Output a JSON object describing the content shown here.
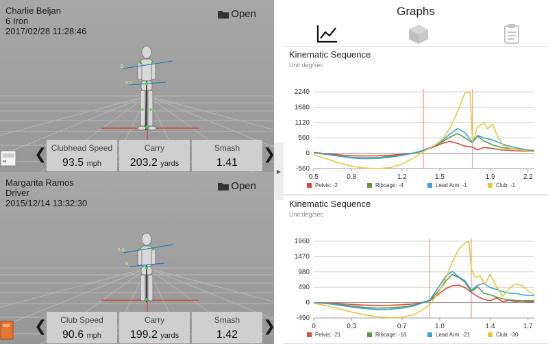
{
  "viewers": [
    {
      "player": "Charlie Beljan",
      "club": "6 Iron",
      "datetime": "2017/02/28 11:28:46",
      "open_label": "Open",
      "annot_top": "0",
      "annot_mid": "5 0",
      "stats": [
        {
          "label": "Clubhead Speed",
          "value": "93.5",
          "unit": "mph"
        },
        {
          "label": "Carry",
          "value": "203.2",
          "unit": "yards"
        },
        {
          "label": "Smash",
          "value": "1.41",
          "unit": ""
        }
      ]
    },
    {
      "player": "Margarita Ramos",
      "club": "Driver",
      "datetime": "2015/12/14 13:32:30",
      "open_label": "Open",
      "annot_top": "5 0",
      "annot_mid": "9",
      "stats": [
        {
          "label": "Club Speed",
          "value": "90.6",
          "unit": "mph"
        },
        {
          "label": "Carry",
          "value": "199.2",
          "unit": "yards"
        },
        {
          "label": "Smash",
          "value": "1.42",
          "unit": ""
        }
      ]
    }
  ],
  "graphs": {
    "title": "Graphs",
    "tabs": [
      {
        "name": "line-chart-icon",
        "active": true
      },
      {
        "name": "cube-icon",
        "active": false
      },
      {
        "name": "clipboard-icon",
        "active": false
      }
    ]
  },
  "colors": {
    "pelvis": "#d9463a",
    "ribcage": "#5b9a45",
    "lead_arm": "#3aa3d6",
    "club": "#e8c63a",
    "marker": "#e08c7a"
  },
  "chart_data": [
    {
      "type": "line",
      "title": "Kinematic Sequence",
      "subtitle": "Unit:deg/sec",
      "xlim": [
        0.5,
        2.25
      ],
      "ylim": [
        -560,
        2240
      ],
      "x_ticks": [
        "0.5",
        "0.8",
        "1.2",
        "1.5",
        "1.9",
        "2.2"
      ],
      "x_tick_values": [
        0.5,
        0.8,
        1.2,
        1.5,
        1.9,
        2.2
      ],
      "y_ticks": [
        "2240",
        "1680",
        "1120",
        "560",
        "0",
        "-560"
      ],
      "y_tick_values": [
        2240,
        1680,
        1120,
        560,
        0,
        -560
      ],
      "markers": [
        1.37,
        1.76
      ],
      "series": [
        {
          "name": "Pelvis: -2",
          "key": "pelvis",
          "x": [
            0.5,
            0.6,
            0.7,
            0.8,
            0.9,
            1.0,
            1.1,
            1.2,
            1.3,
            1.37,
            1.45,
            1.52,
            1.58,
            1.64,
            1.7,
            1.76,
            1.8,
            1.85,
            1.92,
            2.0,
            2.1,
            2.2,
            2.25
          ],
          "y": [
            30,
            -20,
            -60,
            -90,
            -100,
            -95,
            -75,
            -45,
            10,
            80,
            220,
            360,
            430,
            360,
            260,
            220,
            120,
            210,
            170,
            120,
            90,
            70,
            60
          ]
        },
        {
          "name": "Ribcage: -4",
          "key": "ribcage",
          "x": [
            0.5,
            0.6,
            0.7,
            0.8,
            0.9,
            1.0,
            1.1,
            1.2,
            1.3,
            1.37,
            1.45,
            1.52,
            1.58,
            1.64,
            1.7,
            1.76,
            1.8,
            1.85,
            1.92,
            2.0,
            2.1,
            2.2,
            2.25
          ],
          "y": [
            20,
            -40,
            -100,
            -150,
            -170,
            -160,
            -120,
            -70,
            0,
            90,
            250,
            420,
            580,
            720,
            560,
            380,
            620,
            450,
            300,
            200,
            150,
            100,
            90
          ]
        },
        {
          "name": "Lead Arm: -1",
          "key": "lead_arm",
          "x": [
            0.5,
            0.6,
            0.7,
            0.8,
            0.9,
            1.0,
            1.1,
            1.2,
            1.3,
            1.37,
            1.45,
            1.52,
            1.58,
            1.64,
            1.7,
            1.76,
            1.8,
            1.85,
            1.92,
            2.0,
            2.1,
            2.2,
            2.25
          ],
          "y": [
            10,
            -40,
            -110,
            -170,
            -200,
            -190,
            -150,
            -80,
            20,
            110,
            260,
            460,
            700,
            900,
            750,
            400,
            650,
            560,
            480,
            330,
            200,
            120,
            100
          ]
        },
        {
          "name": "Club: -1",
          "key": "club",
          "x": [
            0.5,
            0.6,
            0.7,
            0.8,
            0.9,
            1.0,
            1.1,
            1.2,
            1.3,
            1.37,
            1.45,
            1.52,
            1.58,
            1.64,
            1.7,
            1.74,
            1.76,
            1.8,
            1.85,
            1.88,
            1.92,
            1.96,
            2.0,
            2.05,
            2.1,
            2.2,
            2.25
          ],
          "y": [
            -50,
            -200,
            -350,
            -470,
            -540,
            -560,
            -530,
            -400,
            -150,
            60,
            250,
            500,
            900,
            1500,
            2200,
            2240,
            400,
            950,
            1100,
            900,
            1050,
            600,
            300,
            200,
            150,
            80,
            60
          ]
        }
      ]
    },
    {
      "type": "line",
      "title": "Kinematic Sequence",
      "subtitle": "Unit:deg/sec",
      "xlim": [
        0,
        1.75
      ],
      "ylim": [
        -490,
        1960
      ],
      "x_ticks": [
        "0",
        "0.3",
        "0.7",
        "1.0",
        "1.4",
        "1.7"
      ],
      "x_tick_values": [
        0,
        0.3,
        0.7,
        1.0,
        1.4,
        1.7
      ],
      "y_ticks": [
        "1960",
        "1470",
        "980",
        "490",
        "0",
        "-490"
      ],
      "y_tick_values": [
        1960,
        1470,
        980,
        490,
        0,
        -490
      ],
      "markers": [
        0.92,
        1.25
      ],
      "series": [
        {
          "name": "Pelvis: -21",
          "key": "pelvis",
          "x": [
            0,
            0.1,
            0.2,
            0.3,
            0.4,
            0.5,
            0.6,
            0.7,
            0.8,
            0.92,
            1.0,
            1.05,
            1.1,
            1.15,
            1.2,
            1.25,
            1.3,
            1.35,
            1.4,
            1.45,
            1.5,
            1.55,
            1.6,
            1.65,
            1.7,
            1.75
          ],
          "y": [
            0,
            -10,
            -30,
            -60,
            -80,
            -90,
            -85,
            -70,
            -40,
            60,
            300,
            450,
            540,
            560,
            480,
            330,
            200,
            100,
            60,
            150,
            30,
            80,
            20,
            50,
            20,
            30
          ]
        },
        {
          "name": "Ribcage: -16",
          "key": "ribcage",
          "x": [
            0,
            0.1,
            0.2,
            0.3,
            0.4,
            0.5,
            0.6,
            0.7,
            0.8,
            0.92,
            1.0,
            1.05,
            1.1,
            1.15,
            1.2,
            1.25,
            1.3,
            1.35,
            1.4,
            1.45,
            1.5,
            1.55,
            1.6,
            1.65,
            1.7,
            1.75
          ],
          "y": [
            0,
            -20,
            -60,
            -110,
            -150,
            -170,
            -165,
            -140,
            -80,
            60,
            420,
            700,
            900,
            800,
            650,
            350,
            500,
            300,
            250,
            180,
            120,
            90,
            70,
            60,
            60,
            60
          ]
        },
        {
          "name": "Lead Arm: -21",
          "key": "lead_arm",
          "x": [
            0,
            0.1,
            0.2,
            0.3,
            0.4,
            0.5,
            0.6,
            0.7,
            0.8,
            0.92,
            1.0,
            1.05,
            1.1,
            1.15,
            1.2,
            1.25,
            1.3,
            1.35,
            1.4,
            1.45,
            1.5,
            1.55,
            1.6,
            1.65,
            1.7,
            1.75
          ],
          "y": [
            0,
            -30,
            -80,
            -140,
            -190,
            -220,
            -215,
            -180,
            -100,
            80,
            550,
            850,
            1000,
            820,
            700,
            400,
            550,
            620,
            480,
            420,
            350,
            300,
            300,
            250,
            230,
            220
          ]
        },
        {
          "name": "Club: -30",
          "key": "club",
          "x": [
            0,
            0.1,
            0.2,
            0.3,
            0.4,
            0.5,
            0.6,
            0.7,
            0.8,
            0.92,
            1.0,
            1.05,
            1.1,
            1.15,
            1.2,
            1.23,
            1.25,
            1.28,
            1.32,
            1.36,
            1.4,
            1.45,
            1.5,
            1.55,
            1.6,
            1.65,
            1.7,
            1.75
          ],
          "y": [
            -20,
            -100,
            -200,
            -300,
            -390,
            -450,
            -480,
            -470,
            -380,
            -80,
            400,
            800,
            1300,
            1700,
            1900,
            1960,
            1100,
            800,
            850,
            600,
            900,
            500,
            200,
            450,
            600,
            550,
            380,
            250
          ]
        }
      ]
    }
  ]
}
